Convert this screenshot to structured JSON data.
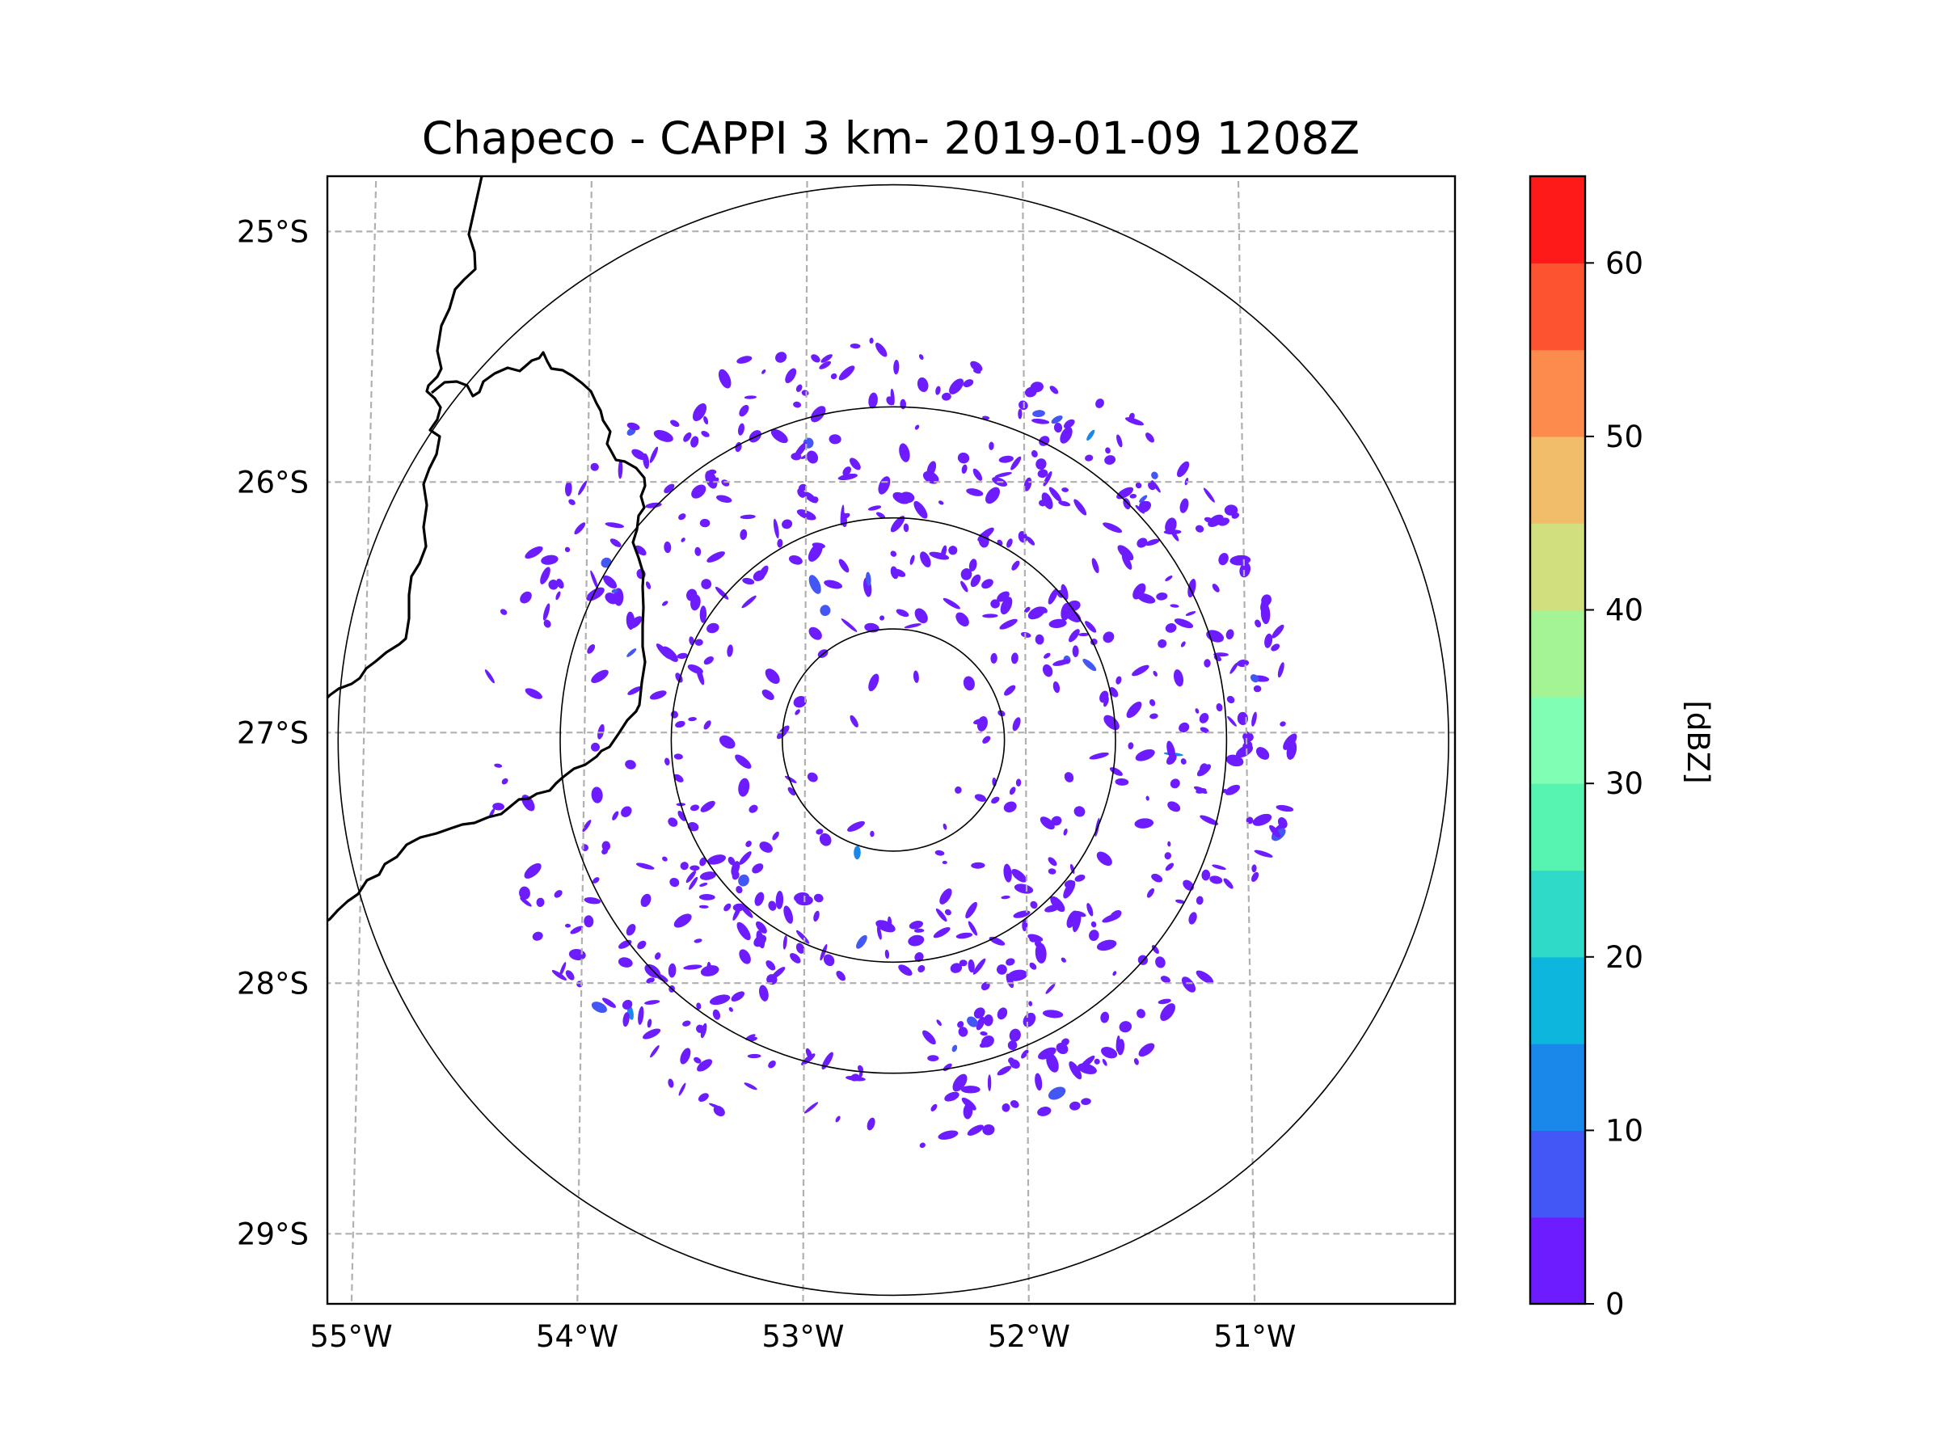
{
  "chart_data": {
    "type": "radar_cappi_map",
    "title": "Chapeco - CAPPI 3 km- 2019-01-09 1208Z",
    "xlim": [
      -55.17,
      -50.05
    ],
    "ylim": [
      -29.28,
      -24.78
    ],
    "x_ticks": [
      {
        "value": -55,
        "label": "55°W"
      },
      {
        "value": -54,
        "label": "54°W"
      },
      {
        "value": -53,
        "label": "53°W"
      },
      {
        "value": -52,
        "label": "52°W"
      },
      {
        "value": -51,
        "label": "51°W"
      }
    ],
    "y_ticks": [
      {
        "value": -25,
        "label": "25°S"
      },
      {
        "value": -26,
        "label": "26°S"
      },
      {
        "value": -27,
        "label": "27°S"
      },
      {
        "value": -28,
        "label": "28°S"
      },
      {
        "value": -29,
        "label": "29°S"
      }
    ],
    "radar_center": {
      "lon": -52.6,
      "lat": -27.03
    },
    "range_rings_km": [
      50,
      100,
      150,
      250
    ],
    "data_extent_km": 185,
    "grid": true,
    "colorbar": {
      "label": "[dBZ]",
      "min": 0,
      "max": 65,
      "ticks": [
        0,
        10,
        20,
        30,
        40,
        50,
        60
      ],
      "boundaries": [
        0,
        5,
        10,
        15,
        20,
        25,
        30,
        35,
        40,
        45,
        50,
        55,
        60,
        65
      ],
      "colors": [
        "#6c1cfe",
        "#4257f5",
        "#1a88ea",
        "#0db6dc",
        "#2fdac9",
        "#57f3b1",
        "#80feb3",
        "#a4f495",
        "#d1df7f",
        "#f2bd6a",
        "#fe8b4e",
        "#fe5330",
        "#fe1a19"
      ]
    },
    "echo_summary": "Scattered weak echoes (mostly 0-5 dBZ, isolated 5-20 dBZ) throughout 185 km range; denser bands to the east and south-southwest of the radar."
  }
}
